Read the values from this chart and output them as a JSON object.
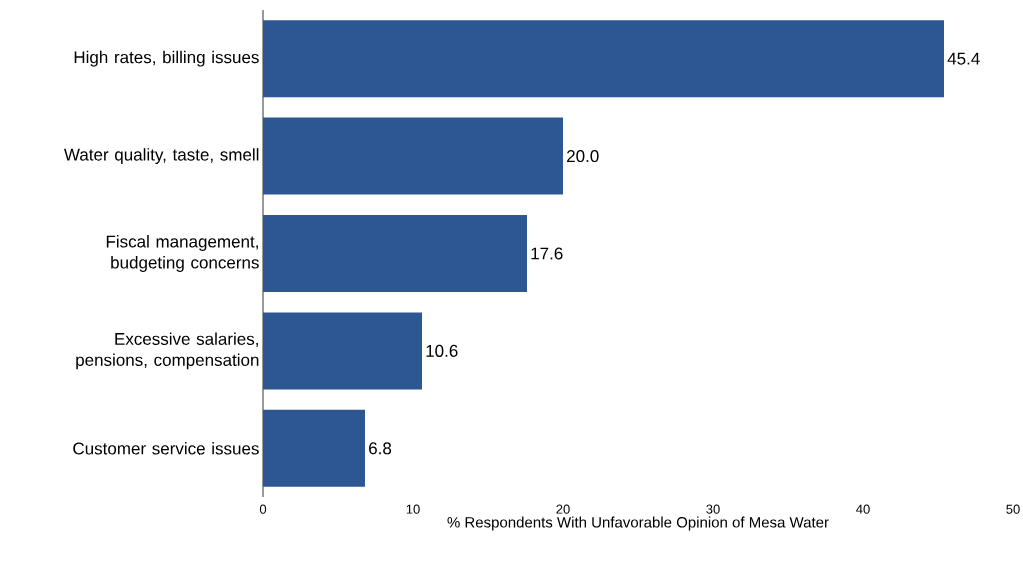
{
  "chart_data": {
    "type": "bar",
    "orientation": "horizontal",
    "xlabel": "% Respondents With Unfavorable Opinion of Mesa Water",
    "categories": [
      "High rates, billing issues",
      "Water quality, taste, smell",
      "Fiscal management, budgeting concerns",
      "Excessive salaries, pensions, compensation",
      "Customer service issues"
    ],
    "values": [
      45.4,
      20.0,
      17.6,
      10.6,
      6.8
    ],
    "value_labels": [
      "45.4",
      "20.0",
      "17.6",
      "10.6",
      "6.8"
    ],
    "color": "#2c5792",
    "xlim": [
      0,
      50
    ],
    "xticks": [
      0,
      10,
      20,
      30,
      40,
      50
    ]
  }
}
